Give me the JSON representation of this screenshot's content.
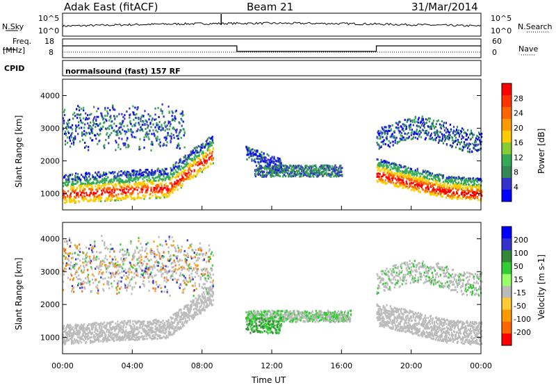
{
  "header": {
    "station": "Adak East (fitACF)",
    "beam": "Beam 21",
    "date": "31/Mar/2014"
  },
  "strip_labels": {
    "nsky": "N.Sky",
    "nsearch": "N.Search",
    "freq_top": "Freq.",
    "freq_unit": "[MHz]",
    "nave": "Nave",
    "cpid": "CPID",
    "cpid_value": "normalsound (fast) 157 RF"
  },
  "noise_ticks": {
    "left": [
      "10^5",
      "10^0"
    ],
    "right": [
      "10^5",
      "10^0"
    ]
  },
  "freq_ticks": {
    "left": [
      "18",
      "8"
    ],
    "right": [
      "60",
      "0"
    ]
  },
  "colors": {
    "accent_text": "#000000",
    "velocity_palette": [
      "#ff0000",
      "#ff6600",
      "#ff9900",
      "#ffcc33",
      "#bbbbbb",
      "#99ff66",
      "#33cc33",
      "#338833",
      "#3333cc",
      "#0000ff"
    ],
    "power_palette": [
      "#0000ff",
      "#3333cc",
      "#338855",
      "#33aa55",
      "#88cc33",
      "#ffcc00",
      "#ff9900",
      "#ff6600",
      "#ff3300",
      "#ff0000"
    ]
  },
  "chart_data": [
    {
      "type": "heatmap",
      "panel": "power",
      "ylabel": "Slant Range [km]",
      "y_ticks": [
        "1000",
        "2000",
        "3000",
        "4000"
      ],
      "ylim": [
        500,
        4500
      ],
      "colorbar_label": "Power [dB]",
      "colorbar_ticks": [
        "4",
        "8",
        "12",
        "16",
        "20",
        "24",
        "28"
      ],
      "features": [
        {
          "t": 0,
          "range_km": 1000,
          "power_db": 28
        },
        {
          "t": 6,
          "range_km": 1200,
          "power_db": 26
        },
        {
          "t": 8,
          "range_km": 2000,
          "power_db": 20
        },
        {
          "t": 14,
          "range_km": 1600,
          "power_db": 12
        },
        {
          "t": 18,
          "range_km": 1800,
          "power_db": 28
        },
        {
          "t": 24,
          "range_km": 1000,
          "power_db": 26
        }
      ]
    },
    {
      "type": "heatmap",
      "panel": "velocity",
      "ylabel": "Slant Range [km]",
      "y_ticks": [
        "1000",
        "2000",
        "3000",
        "4000"
      ],
      "ylim": [
        500,
        4500
      ],
      "colorbar_label": "Velocity [m s-1]",
      "colorbar_ticks": [
        "200",
        "100",
        "50",
        "15",
        "-15",
        "-50",
        "-100",
        "-200"
      ],
      "xlabel": "Time UT",
      "x_ticks": [
        "00:00",
        "04:00",
        "08:00",
        "12:00",
        "16:00",
        "20:00",
        "00:00"
      ],
      "xlim_hours": [
        0,
        24
      ]
    }
  ]
}
